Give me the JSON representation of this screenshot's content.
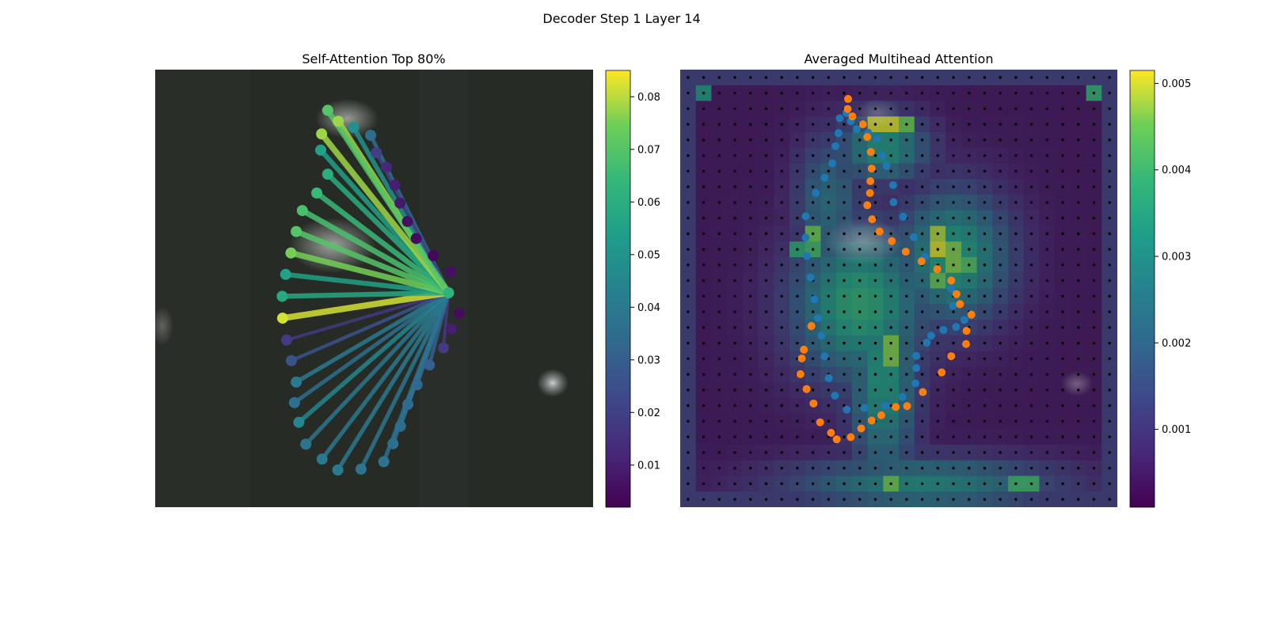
{
  "figure": {
    "title": "Decoder Step 1 Layer 14"
  },
  "chart_data": [
    {
      "type": "network",
      "title": "Self-Attention Top 80%",
      "colormap": "viridis",
      "colorbar": {
        "min": 0.002,
        "max": 0.085,
        "ticks": [
          "0.01",
          "0.02",
          "0.03",
          "0.04",
          "0.05",
          "0.06",
          "0.07",
          "0.08"
        ],
        "tick_values": [
          0.01,
          0.02,
          0.03,
          0.04,
          0.05,
          0.06,
          0.07,
          0.08
        ]
      },
      "query_point": {
        "x": 0.67,
        "y": 0.49,
        "value": 0.062
      },
      "points": [
        {
          "x": 0.418,
          "y": 0.882,
          "value": 0.078
        },
        {
          "x": 0.453,
          "y": 0.868,
          "value": 0.049
        },
        {
          "x": 0.492,
          "y": 0.85,
          "value": 0.035
        },
        {
          "x": 0.505,
          "y": 0.81,
          "value": 0.02
        },
        {
          "x": 0.528,
          "y": 0.777,
          "value": 0.012
        },
        {
          "x": 0.547,
          "y": 0.736,
          "value": 0.01
        },
        {
          "x": 0.559,
          "y": 0.695,
          "value": 0.008
        },
        {
          "x": 0.576,
          "y": 0.653,
          "value": 0.006
        },
        {
          "x": 0.596,
          "y": 0.614,
          "value": 0.005
        },
        {
          "x": 0.635,
          "y": 0.575,
          "value": 0.004
        },
        {
          "x": 0.674,
          "y": 0.538,
          "value": 0.006
        },
        {
          "x": 0.694,
          "y": 0.443,
          "value": 0.005
        },
        {
          "x": 0.676,
          "y": 0.407,
          "value": 0.01
        },
        {
          "x": 0.658,
          "y": 0.364,
          "value": 0.018
        },
        {
          "x": 0.626,
          "y": 0.325,
          "value": 0.03
        },
        {
          "x": 0.598,
          "y": 0.28,
          "value": 0.033
        },
        {
          "x": 0.577,
          "y": 0.235,
          "value": 0.034
        },
        {
          "x": 0.56,
          "y": 0.185,
          "value": 0.035
        },
        {
          "x": 0.543,
          "y": 0.145,
          "value": 0.036
        },
        {
          "x": 0.522,
          "y": 0.104,
          "value": 0.037
        },
        {
          "x": 0.47,
          "y": 0.087,
          "value": 0.038
        },
        {
          "x": 0.417,
          "y": 0.085,
          "value": 0.04
        },
        {
          "x": 0.381,
          "y": 0.11,
          "value": 0.039
        },
        {
          "x": 0.344,
          "y": 0.144,
          "value": 0.038
        },
        {
          "x": 0.328,
          "y": 0.194,
          "value": 0.045
        },
        {
          "x": 0.318,
          "y": 0.239,
          "value": 0.036
        },
        {
          "x": 0.322,
          "y": 0.286,
          "value": 0.04
        },
        {
          "x": 0.311,
          "y": 0.335,
          "value": 0.026
        },
        {
          "x": 0.3,
          "y": 0.382,
          "value": 0.018
        },
        {
          "x": 0.291,
          "y": 0.432,
          "value": 0.082
        },
        {
          "x": 0.29,
          "y": 0.482,
          "value": 0.058
        },
        {
          "x": 0.298,
          "y": 0.532,
          "value": 0.055
        },
        {
          "x": 0.31,
          "y": 0.581,
          "value": 0.075
        },
        {
          "x": 0.322,
          "y": 0.63,
          "value": 0.07
        },
        {
          "x": 0.336,
          "y": 0.678,
          "value": 0.068
        },
        {
          "x": 0.369,
          "y": 0.718,
          "value": 0.065
        },
        {
          "x": 0.394,
          "y": 0.761,
          "value": 0.06
        },
        {
          "x": 0.378,
          "y": 0.816,
          "value": 0.055
        },
        {
          "x": 0.38,
          "y": 0.853,
          "value": 0.078
        },
        {
          "x": 0.394,
          "y": 0.907,
          "value": 0.07
        }
      ]
    },
    {
      "type": "heatmap",
      "title": "Averaged Multihead Attention",
      "colormap": "viridis",
      "colorbar": {
        "min": 0.0001,
        "max": 0.00515,
        "ticks": [
          "0.001",
          "0.002",
          "0.003",
          "0.004",
          "0.005"
        ],
        "tick_values": [
          0.001,
          0.002,
          0.003,
          0.004,
          0.005
        ]
      },
      "grid": {
        "rows": 28,
        "cols": 28
      },
      "hot_spots": [
        {
          "r": 14.5,
          "c": 11,
          "v": 0.0038,
          "sr": 3.5,
          "sc": 3
        },
        {
          "r": 11.5,
          "c": 17,
          "v": 0.0036,
          "sr": 3,
          "sc": 2.5
        },
        {
          "r": 4.5,
          "c": 12.5,
          "v": 0.0034,
          "sr": 1.5,
          "sc": 2
        },
        {
          "r": 19,
          "c": 12.5,
          "v": 0.0034,
          "sr": 5,
          "sc": 1.5
        },
        {
          "r": 8,
          "c": 9,
          "v": 0.0024,
          "sr": 3,
          "sc": 1.5
        },
        {
          "r": 26,
          "c": 15,
          "v": 0.003,
          "sr": 1.2,
          "sc": 6
        }
      ],
      "cell_overrides": [
        {
          "r": 3,
          "c": 12,
          "v": 0.005
        },
        {
          "r": 3,
          "c": 13,
          "v": 0.005
        },
        {
          "r": 3,
          "c": 14,
          "v": 0.0045
        },
        {
          "r": 10,
          "c": 16,
          "v": 0.0048
        },
        {
          "r": 11,
          "c": 16,
          "v": 0.005
        },
        {
          "r": 11,
          "c": 17,
          "v": 0.0046
        },
        {
          "r": 12,
          "c": 17,
          "v": 0.0046
        },
        {
          "r": 12,
          "c": 18,
          "v": 0.0042
        },
        {
          "r": 13,
          "c": 16,
          "v": 0.0044
        },
        {
          "r": 10,
          "c": 8,
          "v": 0.0045
        },
        {
          "r": 11,
          "c": 8,
          "v": 0.004
        },
        {
          "r": 11,
          "c": 7,
          "v": 0.0036
        },
        {
          "r": 17,
          "c": 13,
          "v": 0.0046
        },
        {
          "r": 18,
          "c": 13,
          "v": 0.0046
        },
        {
          "r": 26,
          "c": 13,
          "v": 0.0045
        },
        {
          "r": 26,
          "c": 21,
          "v": 0.004
        },
        {
          "r": 26,
          "c": 22,
          "v": 0.004
        },
        {
          "r": 1,
          "c": 1,
          "v": 0.0032
        },
        {
          "r": 1,
          "c": 26,
          "v": 0.0038
        }
      ],
      "blue_points": [
        {
          "x": 0.365,
          "y": 0.889
        },
        {
          "x": 0.38,
          "y": 0.901
        },
        {
          "x": 0.39,
          "y": 0.882
        },
        {
          "x": 0.404,
          "y": 0.864
        },
        {
          "x": 0.43,
          "y": 0.856
        },
        {
          "x": 0.45,
          "y": 0.843
        },
        {
          "x": 0.462,
          "y": 0.803
        },
        {
          "x": 0.472,
          "y": 0.78
        },
        {
          "x": 0.487,
          "y": 0.736
        },
        {
          "x": 0.488,
          "y": 0.697
        },
        {
          "x": 0.51,
          "y": 0.664
        },
        {
          "x": 0.534,
          "y": 0.617
        },
        {
          "x": 0.56,
          "y": 0.572
        },
        {
          "x": 0.62,
          "y": 0.499
        },
        {
          "x": 0.624,
          "y": 0.46
        },
        {
          "x": 0.65,
          "y": 0.428
        },
        {
          "x": 0.631,
          "y": 0.412
        },
        {
          "x": 0.602,
          "y": 0.405
        },
        {
          "x": 0.574,
          "y": 0.392
        },
        {
          "x": 0.564,
          "y": 0.376
        },
        {
          "x": 0.54,
          "y": 0.346
        },
        {
          "x": 0.54,
          "y": 0.318
        },
        {
          "x": 0.538,
          "y": 0.283
        },
        {
          "x": 0.508,
          "y": 0.252
        },
        {
          "x": 0.47,
          "y": 0.232
        },
        {
          "x": 0.421,
          "y": 0.227
        },
        {
          "x": 0.381,
          "y": 0.223
        },
        {
          "x": 0.354,
          "y": 0.255
        },
        {
          "x": 0.34,
          "y": 0.295
        },
        {
          "x": 0.33,
          "y": 0.345
        },
        {
          "x": 0.323,
          "y": 0.392
        },
        {
          "x": 0.315,
          "y": 0.432
        },
        {
          "x": 0.307,
          "y": 0.475
        },
        {
          "x": 0.298,
          "y": 0.525
        },
        {
          "x": 0.29,
          "y": 0.574
        },
        {
          "x": 0.287,
          "y": 0.616
        },
        {
          "x": 0.287,
          "y": 0.665
        },
        {
          "x": 0.31,
          "y": 0.718
        },
        {
          "x": 0.33,
          "y": 0.753
        },
        {
          "x": 0.348,
          "y": 0.786
        },
        {
          "x": 0.355,
          "y": 0.825
        },
        {
          "x": 0.362,
          "y": 0.855
        }
      ],
      "orange_points": [
        {
          "x": 0.384,
          "y": 0.933
        },
        {
          "x": 0.383,
          "y": 0.91
        },
        {
          "x": 0.394,
          "y": 0.893
        },
        {
          "x": 0.418,
          "y": 0.875
        },
        {
          "x": 0.428,
          "y": 0.846
        },
        {
          "x": 0.436,
          "y": 0.812
        },
        {
          "x": 0.438,
          "y": 0.774
        },
        {
          "x": 0.435,
          "y": 0.745
        },
        {
          "x": 0.434,
          "y": 0.718
        },
        {
          "x": 0.428,
          "y": 0.69
        },
        {
          "x": 0.439,
          "y": 0.658
        },
        {
          "x": 0.456,
          "y": 0.63
        },
        {
          "x": 0.484,
          "y": 0.608
        },
        {
          "x": 0.516,
          "y": 0.584
        },
        {
          "x": 0.552,
          "y": 0.562
        },
        {
          "x": 0.588,
          "y": 0.544
        },
        {
          "x": 0.62,
          "y": 0.518
        },
        {
          "x": 0.632,
          "y": 0.487
        },
        {
          "x": 0.64,
          "y": 0.464
        },
        {
          "x": 0.666,
          "y": 0.44
        },
        {
          "x": 0.655,
          "y": 0.403
        },
        {
          "x": 0.654,
          "y": 0.373
        },
        {
          "x": 0.62,
          "y": 0.345
        },
        {
          "x": 0.598,
          "y": 0.308
        },
        {
          "x": 0.555,
          "y": 0.263
        },
        {
          "x": 0.519,
          "y": 0.231
        },
        {
          "x": 0.493,
          "y": 0.229
        },
        {
          "x": 0.46,
          "y": 0.21
        },
        {
          "x": 0.438,
          "y": 0.198
        },
        {
          "x": 0.414,
          "y": 0.18
        },
        {
          "x": 0.39,
          "y": 0.16
        },
        {
          "x": 0.358,
          "y": 0.155
        },
        {
          "x": 0.345,
          "y": 0.17
        },
        {
          "x": 0.32,
          "y": 0.194
        },
        {
          "x": 0.305,
          "y": 0.237
        },
        {
          "x": 0.289,
          "y": 0.27
        },
        {
          "x": 0.275,
          "y": 0.304
        },
        {
          "x": 0.278,
          "y": 0.34
        },
        {
          "x": 0.283,
          "y": 0.36
        },
        {
          "x": 0.3,
          "y": 0.414
        }
      ]
    }
  ]
}
